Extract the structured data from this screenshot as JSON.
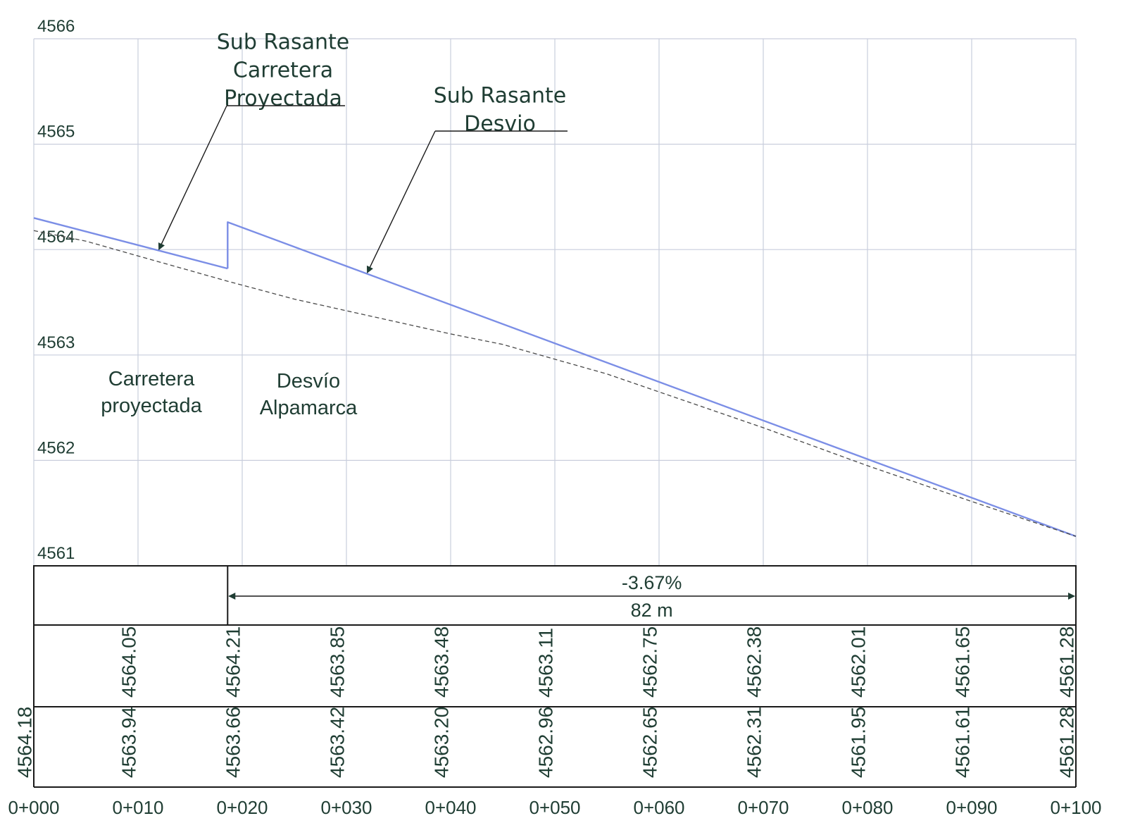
{
  "chart_data": {
    "type": "line",
    "title": "",
    "y_ticks": [
      "4566",
      "4565",
      "4564",
      "4563",
      "4562",
      "4561"
    ],
    "y_range": [
      4561,
      4566
    ],
    "x_range": [
      0,
      100
    ],
    "grid": true,
    "x_ticks": [
      "0+000",
      "0+010",
      "0+020",
      "0+030",
      "0+040",
      "0+050",
      "0+060",
      "0+070",
      "0+080",
      "0+090",
      "0+100"
    ],
    "series": [
      {
        "id": "carretera-proyectada",
        "style": "solid",
        "points": [
          [
            0,
            4564.3
          ],
          [
            18.6,
            4563.82
          ]
        ]
      },
      {
        "id": "desvio",
        "style": "solid",
        "points": [
          [
            18.6,
            4563.82
          ],
          [
            18.6,
            4564.26
          ],
          [
            100,
            4561.28
          ]
        ]
      },
      {
        "id": "terreno",
        "style": "dashed",
        "points": [
          [
            0,
            4564.18
          ],
          [
            5,
            4564.08
          ],
          [
            10,
            4563.94
          ],
          [
            18.6,
            4563.7
          ],
          [
            25,
            4563.53
          ],
          [
            30,
            4563.42
          ],
          [
            40,
            4563.2
          ],
          [
            45,
            4563.1
          ],
          [
            50,
            4562.96
          ],
          [
            55,
            4562.82
          ],
          [
            60,
            4562.65
          ],
          [
            70,
            4562.31
          ],
          [
            80,
            4561.95
          ],
          [
            90,
            4561.61
          ],
          [
            100,
            4561.28
          ]
        ]
      }
    ],
    "callouts": [
      {
        "id": "sub-rasante-carretera",
        "lines": [
          "Sub Rasante",
          "Carretera",
          "Proyectada"
        ],
        "target": [
          12,
          4564.0
        ]
      },
      {
        "id": "sub-rasante-desvio",
        "lines": [
          "Sub Rasante",
          "Desvio"
        ],
        "target": [
          32,
          4563.78
        ]
      }
    ],
    "zone_labels": [
      {
        "id": "carretera-proyectada",
        "lines": [
          "Carretera",
          "proyectada"
        ]
      },
      {
        "id": "desvio-alpamarca",
        "lines": [
          "Desvío",
          "Alpamarca"
        ]
      }
    ],
    "slope_band": {
      "from_x": 18.6,
      "to_x": 100,
      "grade": "-3.67%",
      "length": "82 m"
    },
    "profile_table": {
      "rasante_row": [
        {
          "x": 10,
          "value": "4564.05"
        },
        {
          "x": 20,
          "value": "4564.21"
        },
        {
          "x": 30,
          "value": "4563.85"
        },
        {
          "x": 40,
          "value": "4563.48"
        },
        {
          "x": 50,
          "value": "4563.11"
        },
        {
          "x": 60,
          "value": "4562.75"
        },
        {
          "x": 70,
          "value": "4562.38"
        },
        {
          "x": 80,
          "value": "4562.01"
        },
        {
          "x": 90,
          "value": "4561.65"
        },
        {
          "x": 100,
          "value": "4561.28"
        }
      ],
      "terreno_row": [
        {
          "x": 0,
          "value": "4564.18"
        },
        {
          "x": 10,
          "value": "4563.94"
        },
        {
          "x": 20,
          "value": "4563.66"
        },
        {
          "x": 30,
          "value": "4563.42"
        },
        {
          "x": 40,
          "value": "4563.20"
        },
        {
          "x": 50,
          "value": "4562.96"
        },
        {
          "x": 60,
          "value": "4562.65"
        },
        {
          "x": 70,
          "value": "4562.31"
        },
        {
          "x": 80,
          "value": "4561.95"
        },
        {
          "x": 90,
          "value": "4561.61"
        },
        {
          "x": 100,
          "value": "4561.28"
        }
      ]
    },
    "colors": {
      "profile": "#7b8ee6",
      "terrain": "#4a4a4a",
      "grid": "#c9cedd",
      "text": "#1f3d33",
      "frame": "#1a1a1a",
      "arrow": "#1f3d33"
    }
  }
}
